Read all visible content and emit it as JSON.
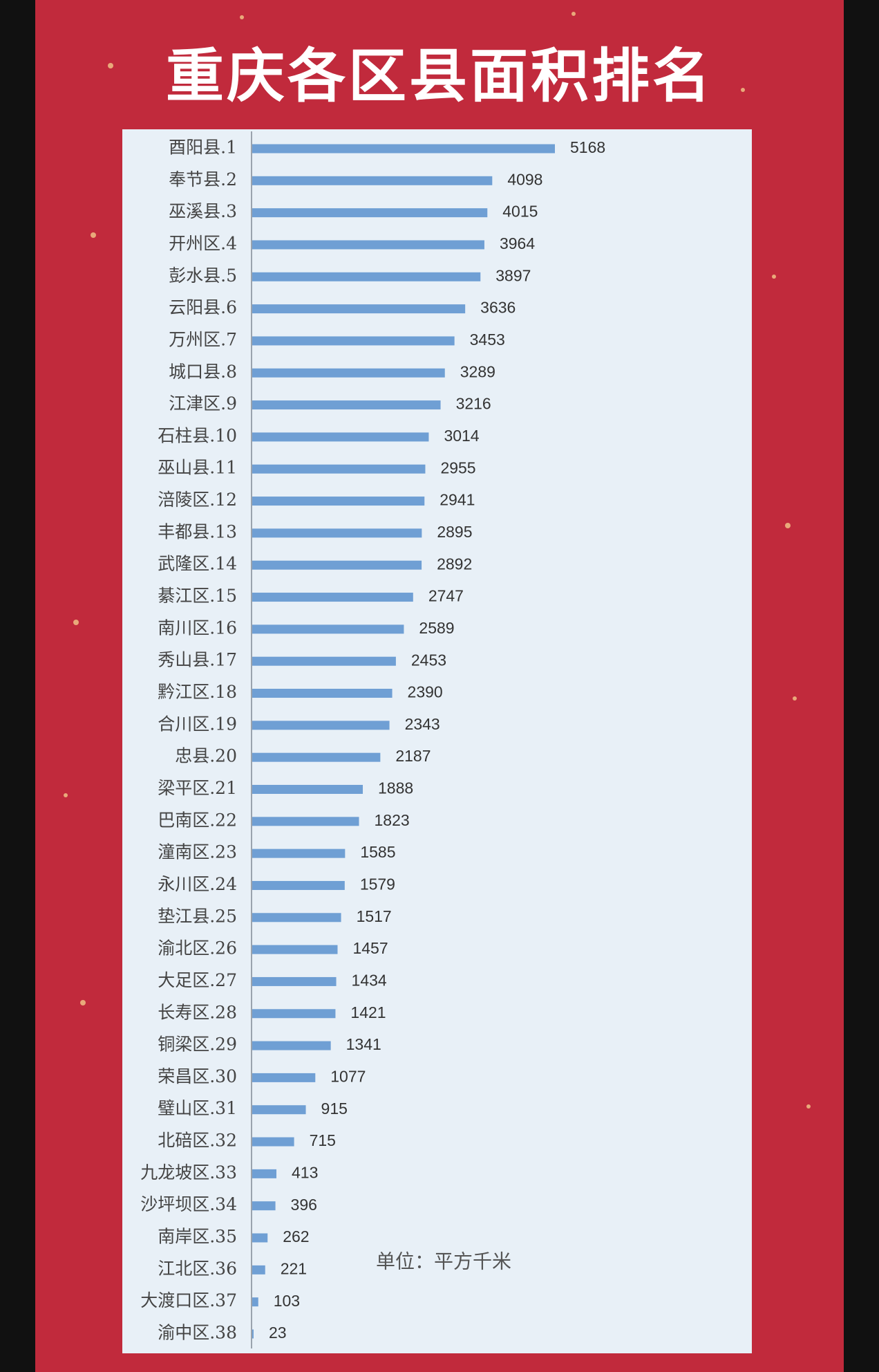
{
  "chart_data": {
    "type": "bar",
    "orientation": "horizontal",
    "title": "重庆各区县面积排名",
    "note": "单位：平方千米",
    "color": "#6f9fd4",
    "categories": [
      "酉阳县.1",
      "奉节县.2",
      "巫溪县.3",
      "开州区.4",
      "彭水县.5",
      "云阳县.6",
      "万州区.7",
      "城口县.8",
      "江津区.9",
      "石柱县.10",
      "巫山县.11",
      "涪陵区.12",
      "丰都县.13",
      "武隆区.14",
      "綦江区.15",
      "南川区.16",
      "秀山县.17",
      "黔江区.18",
      "合川区.19",
      "忠县.20",
      "梁平区.21",
      "巴南区.22",
      "潼南区.23",
      "永川区.24",
      "垫江县.25",
      "渝北区.26",
      "大足区.27",
      "长寿区.28",
      "铜梁区.29",
      "荣昌区.30",
      "璧山区.31",
      "北碚区.32",
      "九龙坡区.33",
      "沙坪坝区.34",
      "南岸区.35",
      "江北区.36",
      "大渡口区.37",
      "渝中区.38"
    ],
    "values": [
      5168,
      4098,
      4015,
      3964,
      3897,
      3636,
      3453,
      3289,
      3216,
      3014,
      2955,
      2941,
      2895,
      2892,
      2747,
      2589,
      2453,
      2390,
      2343,
      2187,
      1888,
      1823,
      1585,
      1579,
      1517,
      1457,
      1434,
      1421,
      1341,
      1077,
      915,
      715,
      413,
      396,
      262,
      221,
      103,
      23
    ]
  }
}
